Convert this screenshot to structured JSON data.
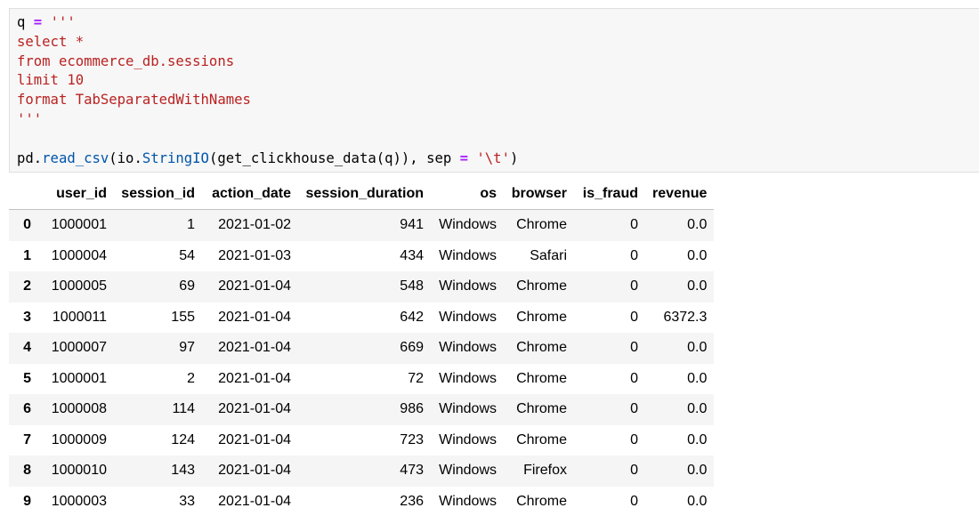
{
  "code_cell": {
    "line1": {
      "var": "q",
      "op": "=",
      "str": "'''"
    },
    "line2": "select *",
    "line3": "from ecommerce_db.sessions",
    "line4": "limit 10",
    "line5": "format TabSeparatedWithNames",
    "line6": "'''",
    "line8": {
      "obj1": "pd",
      "fn1": "read_csv",
      "obj2": "io",
      "fn2": "StringIO",
      "inner": "get_clickhouse_data(q)",
      "kw": "sep",
      "op": "=",
      "str": "'\\t'"
    }
  },
  "dataframe": {
    "columns": [
      "",
      "user_id",
      "session_id",
      "action_date",
      "session_duration",
      "os",
      "browser",
      "is_fraud",
      "revenue"
    ],
    "rows": [
      [
        "0",
        "1000001",
        "1",
        "2021-01-02",
        "941",
        "Windows",
        "Chrome",
        "0",
        "0.0"
      ],
      [
        "1",
        "1000004",
        "54",
        "2021-01-03",
        "434",
        "Windows",
        "Safari",
        "0",
        "0.0"
      ],
      [
        "2",
        "1000005",
        "69",
        "2021-01-04",
        "548",
        "Windows",
        "Chrome",
        "0",
        "0.0"
      ],
      [
        "3",
        "1000011",
        "155",
        "2021-01-04",
        "642",
        "Windows",
        "Chrome",
        "0",
        "6372.3"
      ],
      [
        "4",
        "1000007",
        "97",
        "2021-01-04",
        "669",
        "Windows",
        "Chrome",
        "0",
        "0.0"
      ],
      [
        "5",
        "1000001",
        "2",
        "2021-01-04",
        "72",
        "Windows",
        "Chrome",
        "0",
        "0.0"
      ],
      [
        "6",
        "1000008",
        "114",
        "2021-01-04",
        "986",
        "Windows",
        "Chrome",
        "0",
        "0.0"
      ],
      [
        "7",
        "1000009",
        "124",
        "2021-01-04",
        "723",
        "Windows",
        "Chrome",
        "0",
        "0.0"
      ],
      [
        "8",
        "1000010",
        "143",
        "2021-01-04",
        "473",
        "Windows",
        "Firefox",
        "0",
        "0.0"
      ],
      [
        "9",
        "1000003",
        "33",
        "2021-01-04",
        "236",
        "Windows",
        "Chrome",
        "0",
        "0.0"
      ]
    ]
  },
  "colors": {
    "string": "#ba2121",
    "operator": "#aa22ff",
    "function": "#0055aa",
    "cell_background": "#f7f7f7",
    "row_stripe": "#f5f5f5"
  }
}
